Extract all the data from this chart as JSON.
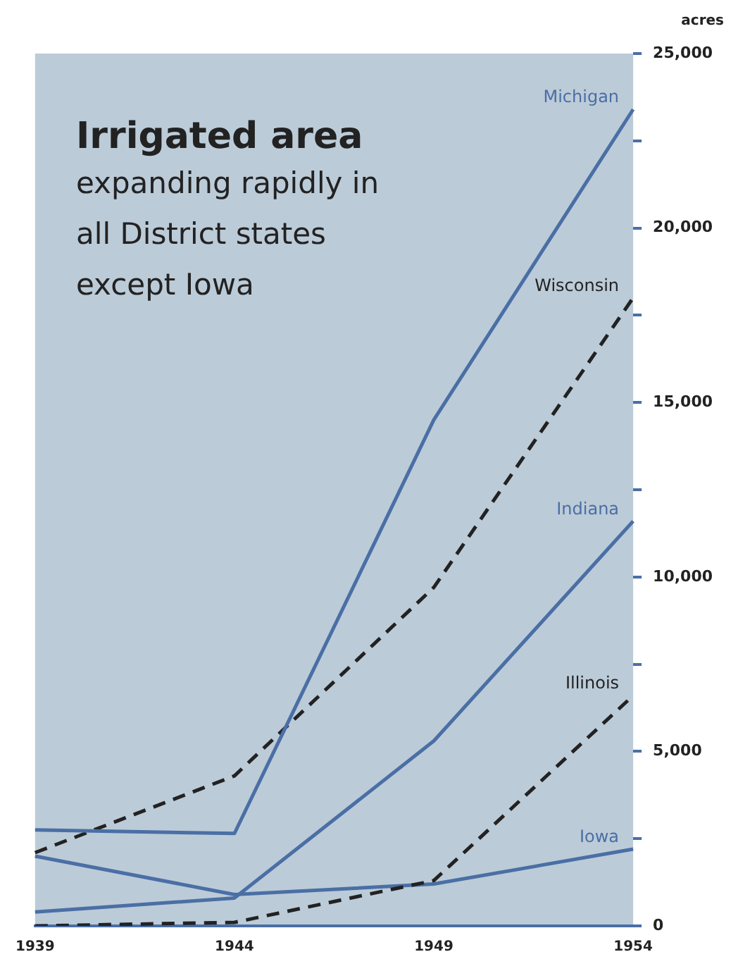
{
  "chart_data": {
    "type": "line",
    "title": "Irrigated area",
    "subtitle": "expanding rapidly in all District states except Iowa",
    "ylabel": "acres",
    "categories": [
      "1939",
      "1944",
      "1949",
      "1954"
    ],
    "series": [
      {
        "name": "Michigan",
        "color": "#4a6fa5",
        "line_style": "solid",
        "values": [
          2750,
          2650,
          14500,
          23400
        ]
      },
      {
        "name": "Wisconsin",
        "color": "#222222",
        "line_style": "dashed",
        "values": [
          2100,
          4300,
          9700,
          18000
        ]
      },
      {
        "name": "Indiana",
        "color": "#4a6fa5",
        "line_style": "solid",
        "values": [
          400,
          800,
          5300,
          11600
        ]
      },
      {
        "name": "Illinois",
        "color": "#222222",
        "line_style": "dashed",
        "values": [
          0,
          100,
          1300,
          6600
        ]
      },
      {
        "name": "Iowa",
        "color": "#4a6fa5",
        "line_style": "solid",
        "values": [
          2000,
          900,
          1200,
          2200
        ]
      }
    ],
    "ylim": [
      0,
      25000
    ],
    "yticks": [
      0,
      {
        "value": 2500,
        "label": null
      },
      "5,000",
      {
        "value": 7500,
        "label": null
      },
      {
        "value": 10000,
        "label": "10,000"
      },
      {
        "value": 12500,
        "label": null
      },
      {
        "value": 15000,
        "label": "15,000"
      },
      {
        "value": 17500,
        "label": null
      },
      {
        "value": 20000,
        "label": "20,000"
      },
      {
        "value": 22500,
        "label": null
      },
      {
        "value": 25000,
        "label": "25,000"
      }
    ],
    "grid": false,
    "legend": false,
    "marker": "none"
  }
}
